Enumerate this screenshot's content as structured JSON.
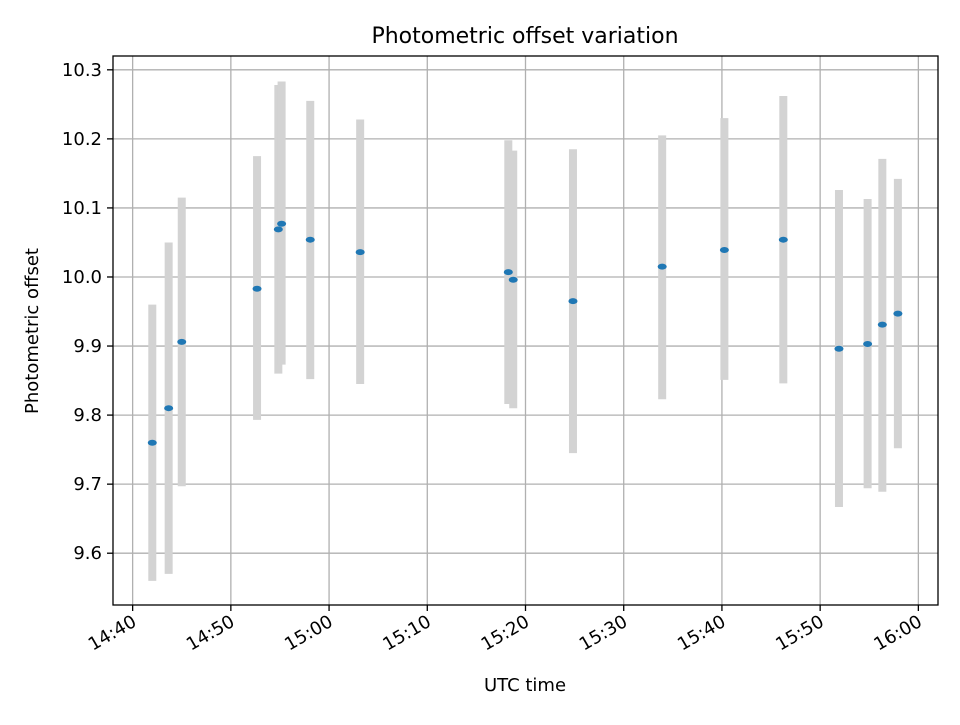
{
  "chart_data": {
    "type": "scatter",
    "title": "Photometric offset variation",
    "xlabel": "UTC time",
    "ylabel": "Photometric offset",
    "xlim": [
      "14:38:00",
      "16:02:00"
    ],
    "ylim": [
      9.525,
      10.32
    ],
    "grid": true,
    "x_tick_labels": [
      "14:40",
      "14:50",
      "15:00",
      "15:10",
      "15:20",
      "15:30",
      "15:40",
      "15:50",
      "16:00"
    ],
    "x_ticks": [
      "14:40:00",
      "14:50:00",
      "15:00:00",
      "15:10:00",
      "15:20:00",
      "15:30:00",
      "15:40:00",
      "15:50:00",
      "16:00:00"
    ],
    "y_ticks": [
      9.6,
      9.7,
      9.8,
      9.9,
      10.0,
      10.1,
      10.2,
      10.3
    ],
    "y_tick_labels": [
      "9.6",
      "9.7",
      "9.8",
      "9.9",
      "10.0",
      "10.1",
      "10.2",
      "10.3"
    ],
    "colors": {
      "points": "#1f77b4",
      "error_bars": "#d3d3d3",
      "grid": "#b0b0b0"
    },
    "points": [
      {
        "x": "14:42:00",
        "y": 9.76,
        "y_low": 9.56,
        "y_high": 9.96
      },
      {
        "x": "14:43:40",
        "y": 9.81,
        "y_low": 9.57,
        "y_high": 10.05
      },
      {
        "x": "14:45:00",
        "y": 9.906,
        "y_low": 9.697,
        "y_high": 10.115
      },
      {
        "x": "14:52:40",
        "y": 9.983,
        "y_low": 9.793,
        "y_high": 10.175
      },
      {
        "x": "14:54:50",
        "y": 10.069,
        "y_low": 9.86,
        "y_high": 10.278
      },
      {
        "x": "14:55:10",
        "y": 10.077,
        "y_low": 9.873,
        "y_high": 10.283
      },
      {
        "x": "14:58:05",
        "y": 10.054,
        "y_low": 9.852,
        "y_high": 10.255
      },
      {
        "x": "15:03:10",
        "y": 10.036,
        "y_low": 9.845,
        "y_high": 10.228
      },
      {
        "x": "15:18:15",
        "y": 10.007,
        "y_low": 9.816,
        "y_high": 10.198
      },
      {
        "x": "15:18:45",
        "y": 9.996,
        "y_low": 9.81,
        "y_high": 10.183
      },
      {
        "x": "15:24:50",
        "y": 9.965,
        "y_low": 9.745,
        "y_high": 10.185
      },
      {
        "x": "15:33:55",
        "y": 10.015,
        "y_low": 9.823,
        "y_high": 10.205
      },
      {
        "x": "15:40:15",
        "y": 10.039,
        "y_low": 9.851,
        "y_high": 10.23
      },
      {
        "x": "15:46:15",
        "y": 10.054,
        "y_low": 9.846,
        "y_high": 10.262
      },
      {
        "x": "15:51:55",
        "y": 9.896,
        "y_low": 9.667,
        "y_high": 10.126
      },
      {
        "x": "15:54:50",
        "y": 9.903,
        "y_low": 9.694,
        "y_high": 10.113
      },
      {
        "x": "15:56:20",
        "y": 9.931,
        "y_low": 9.689,
        "y_high": 10.171
      },
      {
        "x": "15:57:55",
        "y": 9.947,
        "y_low": 9.752,
        "y_high": 10.142
      }
    ]
  }
}
